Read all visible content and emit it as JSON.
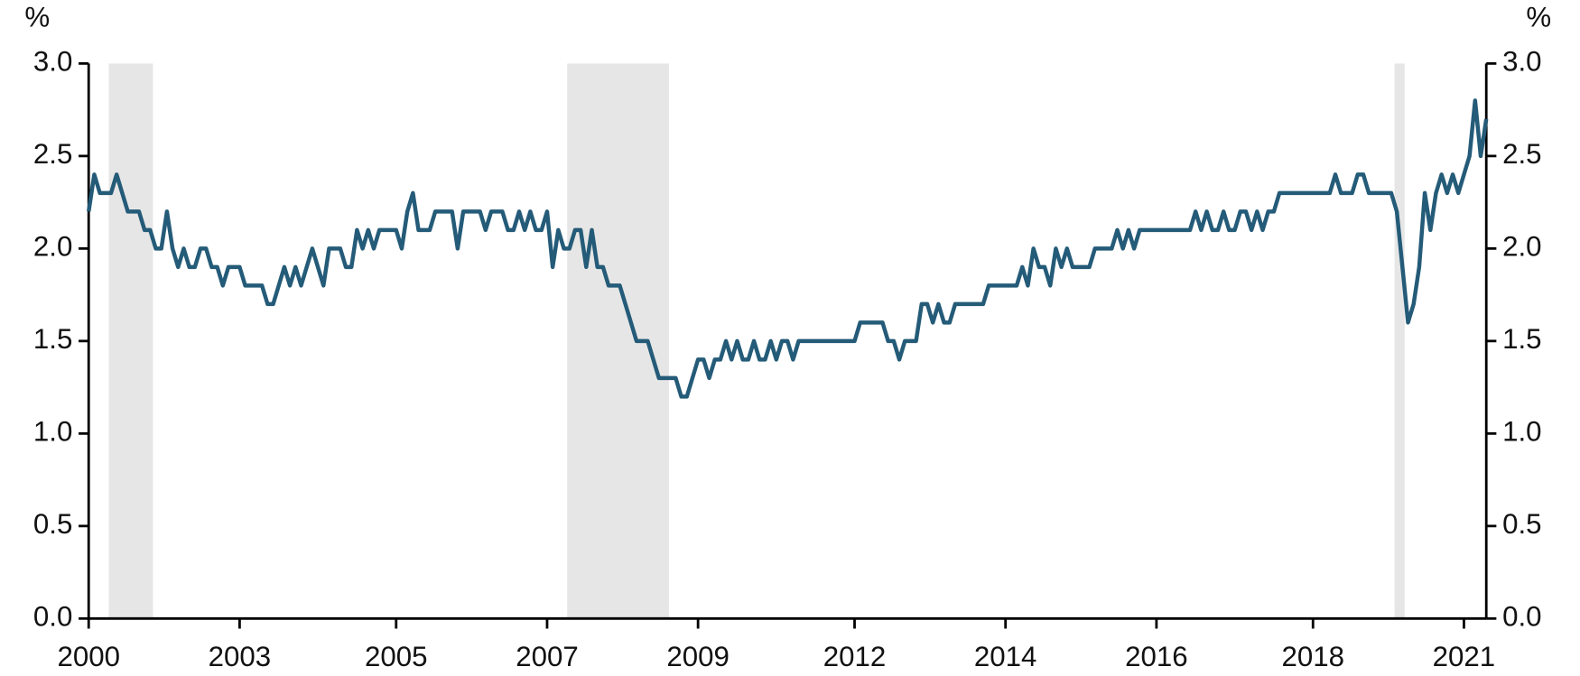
{
  "chart_data": {
    "type": "line",
    "ylabel": "%",
    "y2label": "%",
    "categories": [
      "2000",
      null,
      null,
      null,
      null,
      null,
      null,
      null,
      null,
      null,
      null,
      null,
      null,
      null,
      null,
      null,
      null,
      null,
      null,
      null,
      null,
      null,
      null,
      null,
      null,
      null,
      null,
      "2003",
      null,
      null,
      null,
      null,
      null,
      null,
      null,
      null,
      null,
      null,
      null,
      null,
      null,
      null,
      null,
      null,
      null,
      null,
      null,
      null,
      null,
      null,
      null,
      null,
      null,
      null,
      null,
      "2005",
      null,
      null,
      null,
      null,
      null,
      null,
      null,
      null,
      null,
      null,
      null,
      null,
      null,
      null,
      null,
      null,
      null,
      null,
      null,
      null,
      null,
      null,
      null,
      null,
      null,
      null,
      "2007",
      null,
      null,
      null,
      null,
      null,
      null,
      null,
      null,
      null,
      null,
      null,
      null,
      null,
      null,
      null,
      null,
      null,
      null,
      null,
      null,
      null,
      null,
      null,
      null,
      null,
      null,
      "2009",
      null,
      null,
      null,
      null,
      null,
      null,
      null,
      null,
      null,
      null,
      null,
      null,
      null,
      null,
      null,
      null,
      null,
      null,
      null,
      null,
      null,
      null,
      null,
      null,
      null,
      null,
      null,
      "2012",
      null,
      null,
      null,
      null,
      null,
      null,
      null,
      null,
      null,
      null,
      null,
      null,
      null,
      null,
      null,
      null,
      null,
      null,
      null,
      null,
      null,
      null,
      null,
      null,
      null,
      null,
      "2014",
      null,
      null,
      null,
      null,
      null,
      null,
      null,
      null,
      null,
      null,
      null,
      null,
      null,
      null,
      null,
      null,
      null,
      null,
      null,
      null,
      null,
      null,
      null,
      null,
      null,
      null,
      "2016",
      null,
      null,
      null,
      null,
      null,
      null,
      null,
      null,
      null,
      null,
      null,
      null,
      null,
      null,
      null,
      null,
      null,
      null,
      null,
      null,
      null,
      null,
      null,
      null,
      null,
      null,
      null,
      "2018",
      null,
      null,
      null,
      null,
      null,
      null,
      null,
      null,
      null,
      null,
      null,
      null,
      null,
      null,
      null,
      null,
      null,
      null,
      null,
      null,
      null,
      null,
      null,
      null,
      null,
      null,
      "2021",
      null,
      null,
      null,
      null
    ],
    "series": [
      {
        "color": "#245b78",
        "values": [
          2.2,
          2.4,
          2.3,
          2.3,
          2.3,
          2.4,
          2.3,
          2.2,
          2.2,
          2.2,
          2.1,
          2.1,
          2.0,
          2.0,
          2.2,
          2.0,
          1.9,
          2.0,
          1.9,
          1.9,
          2.0,
          2.0,
          1.9,
          1.9,
          1.8,
          1.9,
          1.9,
          1.9,
          1.8,
          1.8,
          1.8,
          1.8,
          1.7,
          1.7,
          1.8,
          1.9,
          1.8,
          1.9,
          1.8,
          1.9,
          2.0,
          1.9,
          1.8,
          2.0,
          2.0,
          2.0,
          1.9,
          1.9,
          2.1,
          2.0,
          2.1,
          2.0,
          2.1,
          2.1,
          2.1,
          2.1,
          2.0,
          2.2,
          2.3,
          2.1,
          2.1,
          2.1,
          2.2,
          2.2,
          2.2,
          2.2,
          2.0,
          2.2,
          2.2,
          2.2,
          2.2,
          2.1,
          2.2,
          2.2,
          2.2,
          2.1,
          2.1,
          2.2,
          2.1,
          2.2,
          2.1,
          2.1,
          2.2,
          1.9,
          2.1,
          2.0,
          2.0,
          2.1,
          2.1,
          1.9,
          2.1,
          1.9,
          1.9,
          1.8,
          1.8,
          1.8,
          1.7,
          1.6,
          1.5,
          1.5,
          1.5,
          1.4,
          1.3,
          1.3,
          1.3,
          1.3,
          1.2,
          1.2,
          1.3,
          1.4,
          1.4,
          1.3,
          1.4,
          1.4,
          1.5,
          1.4,
          1.5,
          1.4,
          1.4,
          1.5,
          1.4,
          1.4,
          1.5,
          1.4,
          1.5,
          1.5,
          1.4,
          1.5,
          1.5,
          1.5,
          1.5,
          1.5,
          1.5,
          1.5,
          1.5,
          1.5,
          1.5,
          1.5,
          1.6,
          1.6,
          1.6,
          1.6,
          1.6,
          1.5,
          1.5,
          1.4,
          1.5,
          1.5,
          1.5,
          1.7,
          1.7,
          1.6,
          1.7,
          1.6,
          1.6,
          1.7,
          1.7,
          1.7,
          1.7,
          1.7,
          1.7,
          1.8,
          1.8,
          1.8,
          1.8,
          1.8,
          1.8,
          1.9,
          1.8,
          2.0,
          1.9,
          1.9,
          1.8,
          2.0,
          1.9,
          2.0,
          1.9,
          1.9,
          1.9,
          1.9,
          2.0,
          2.0,
          2.0,
          2.0,
          2.1,
          2.0,
          2.1,
          2.0,
          2.1,
          2.1,
          2.1,
          2.1,
          2.1,
          2.1,
          2.1,
          2.1,
          2.1,
          2.1,
          2.2,
          2.1,
          2.2,
          2.1,
          2.1,
          2.2,
          2.1,
          2.1,
          2.2,
          2.2,
          2.1,
          2.2,
          2.1,
          2.2,
          2.2,
          2.3,
          2.3,
          2.3,
          2.3,
          2.3,
          2.3,
          2.3,
          2.3,
          2.3,
          2.3,
          2.4,
          2.3,
          2.3,
          2.3,
          2.4,
          2.4,
          2.3,
          2.3,
          2.3,
          2.3,
          2.3,
          2.2,
          1.9,
          1.6,
          1.7,
          1.9,
          2.3,
          2.1,
          2.3,
          2.4,
          2.3,
          2.4,
          2.3,
          2.4,
          2.5,
          2.8,
          2.5,
          2.7
        ]
      }
    ],
    "shaded_ranges": [
      [
        3.6,
        11.5
      ],
      [
        85.6,
        103.8
      ],
      [
        233.6,
        235.4
      ]
    ],
    "shade_color": "#e6e6e6",
    "ylim": [
      0,
      3.0
    ],
    "yticks": [
      {
        "value": 0,
        "label": "0.0"
      },
      0.5,
      {
        "value": 1,
        "label": "1.0"
      },
      1.5,
      {
        "value": 2,
        "label": "2.0"
      },
      2.5,
      {
        "value": 3,
        "label": "3.0"
      }
    ],
    "y2lim": [
      0,
      3.0
    ],
    "y2ticks": [
      {
        "value": 0,
        "label": "0.0"
      },
      0.5,
      {
        "value": 1,
        "label": "1.0"
      },
      1.5,
      {
        "value": 2,
        "label": "2.0"
      },
      2.5,
      {
        "value": 3,
        "label": "3.0"
      }
    ]
  }
}
